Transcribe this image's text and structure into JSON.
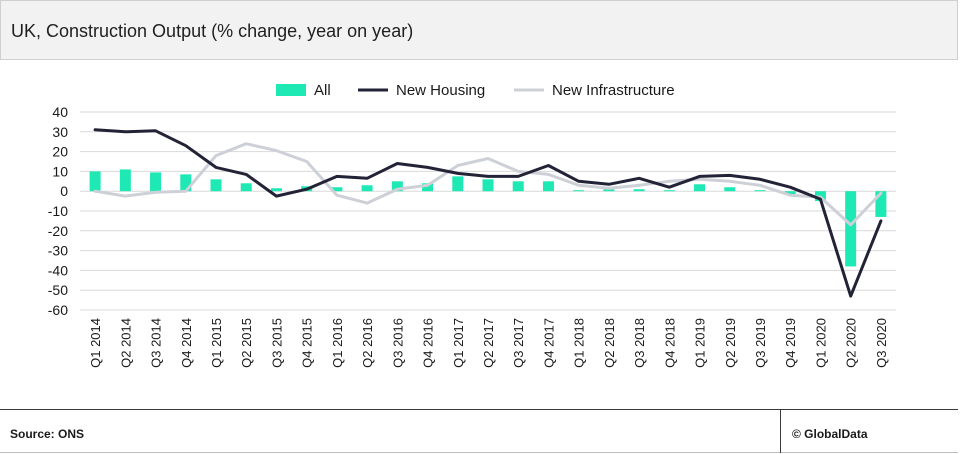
{
  "header": {
    "title": "UK, Construction Output (% change, year on year)"
  },
  "footer": {
    "source": "Source: ONS",
    "brand": "© GlobalData"
  },
  "colors": {
    "all": "#1ee8b4",
    "new_housing": "#232337",
    "new_infrastructure": "#cdd0d6",
    "grid": "#d9d9d9"
  },
  "chart_data": {
    "type": "bar",
    "title": "UK, Construction Output (% change, year on year)",
    "xlabel": "",
    "ylabel": "",
    "ylim": [
      -60,
      40
    ],
    "yticks": [
      40,
      30,
      20,
      10,
      0,
      -10,
      -20,
      -30,
      -40,
      -50,
      -60
    ],
    "grid": true,
    "legend": "top",
    "categories": [
      "Q1 2014",
      "Q2 2014",
      "Q3 2014",
      "Q4 2014",
      "Q1 2015",
      "Q2 2015",
      "Q3 2015",
      "Q4 2015",
      "Q1 2016",
      "Q2 2016",
      "Q3 2016",
      "Q4 2016",
      "Q1 2017",
      "Q2 2017",
      "Q3 2017",
      "Q4 2017",
      "Q1 2018",
      "Q2 2018",
      "Q3 2018",
      "Q4 2018",
      "Q1 2019",
      "Q2 2019",
      "Q3 2019",
      "Q4 2019",
      "Q1 2020",
      "Q2 2020",
      "Q3 2020"
    ],
    "series": [
      {
        "name": "All",
        "kind": "bar",
        "values": [
          10,
          11,
          9.5,
          8.5,
          6,
          4,
          1.5,
          2.5,
          2,
          3,
          5,
          4,
          7.5,
          6,
          5,
          5,
          0.5,
          1,
          1,
          0.5,
          3.5,
          2,
          0.5,
          -1.5,
          -5,
          -38,
          -13
        ]
      },
      {
        "name": "New Housing",
        "kind": "line",
        "values": [
          31,
          30,
          30.5,
          23,
          12,
          8.5,
          -2.5,
          1,
          7.5,
          6.5,
          14,
          12,
          9,
          7.5,
          7.5,
          13,
          5,
          3.5,
          6.5,
          2,
          7.5,
          8,
          6,
          2,
          -4,
          -53,
          -15
        ]
      },
      {
        "name": "New Infrastructure",
        "kind": "line",
        "values": [
          0,
          -2.5,
          -0.5,
          0,
          18,
          24,
          20.5,
          15,
          -2,
          -6,
          1,
          3,
          13,
          16.5,
          10,
          8.5,
          3,
          1.5,
          3,
          5,
          6,
          5,
          3,
          -2,
          -3,
          -17,
          -1
        ]
      }
    ]
  }
}
